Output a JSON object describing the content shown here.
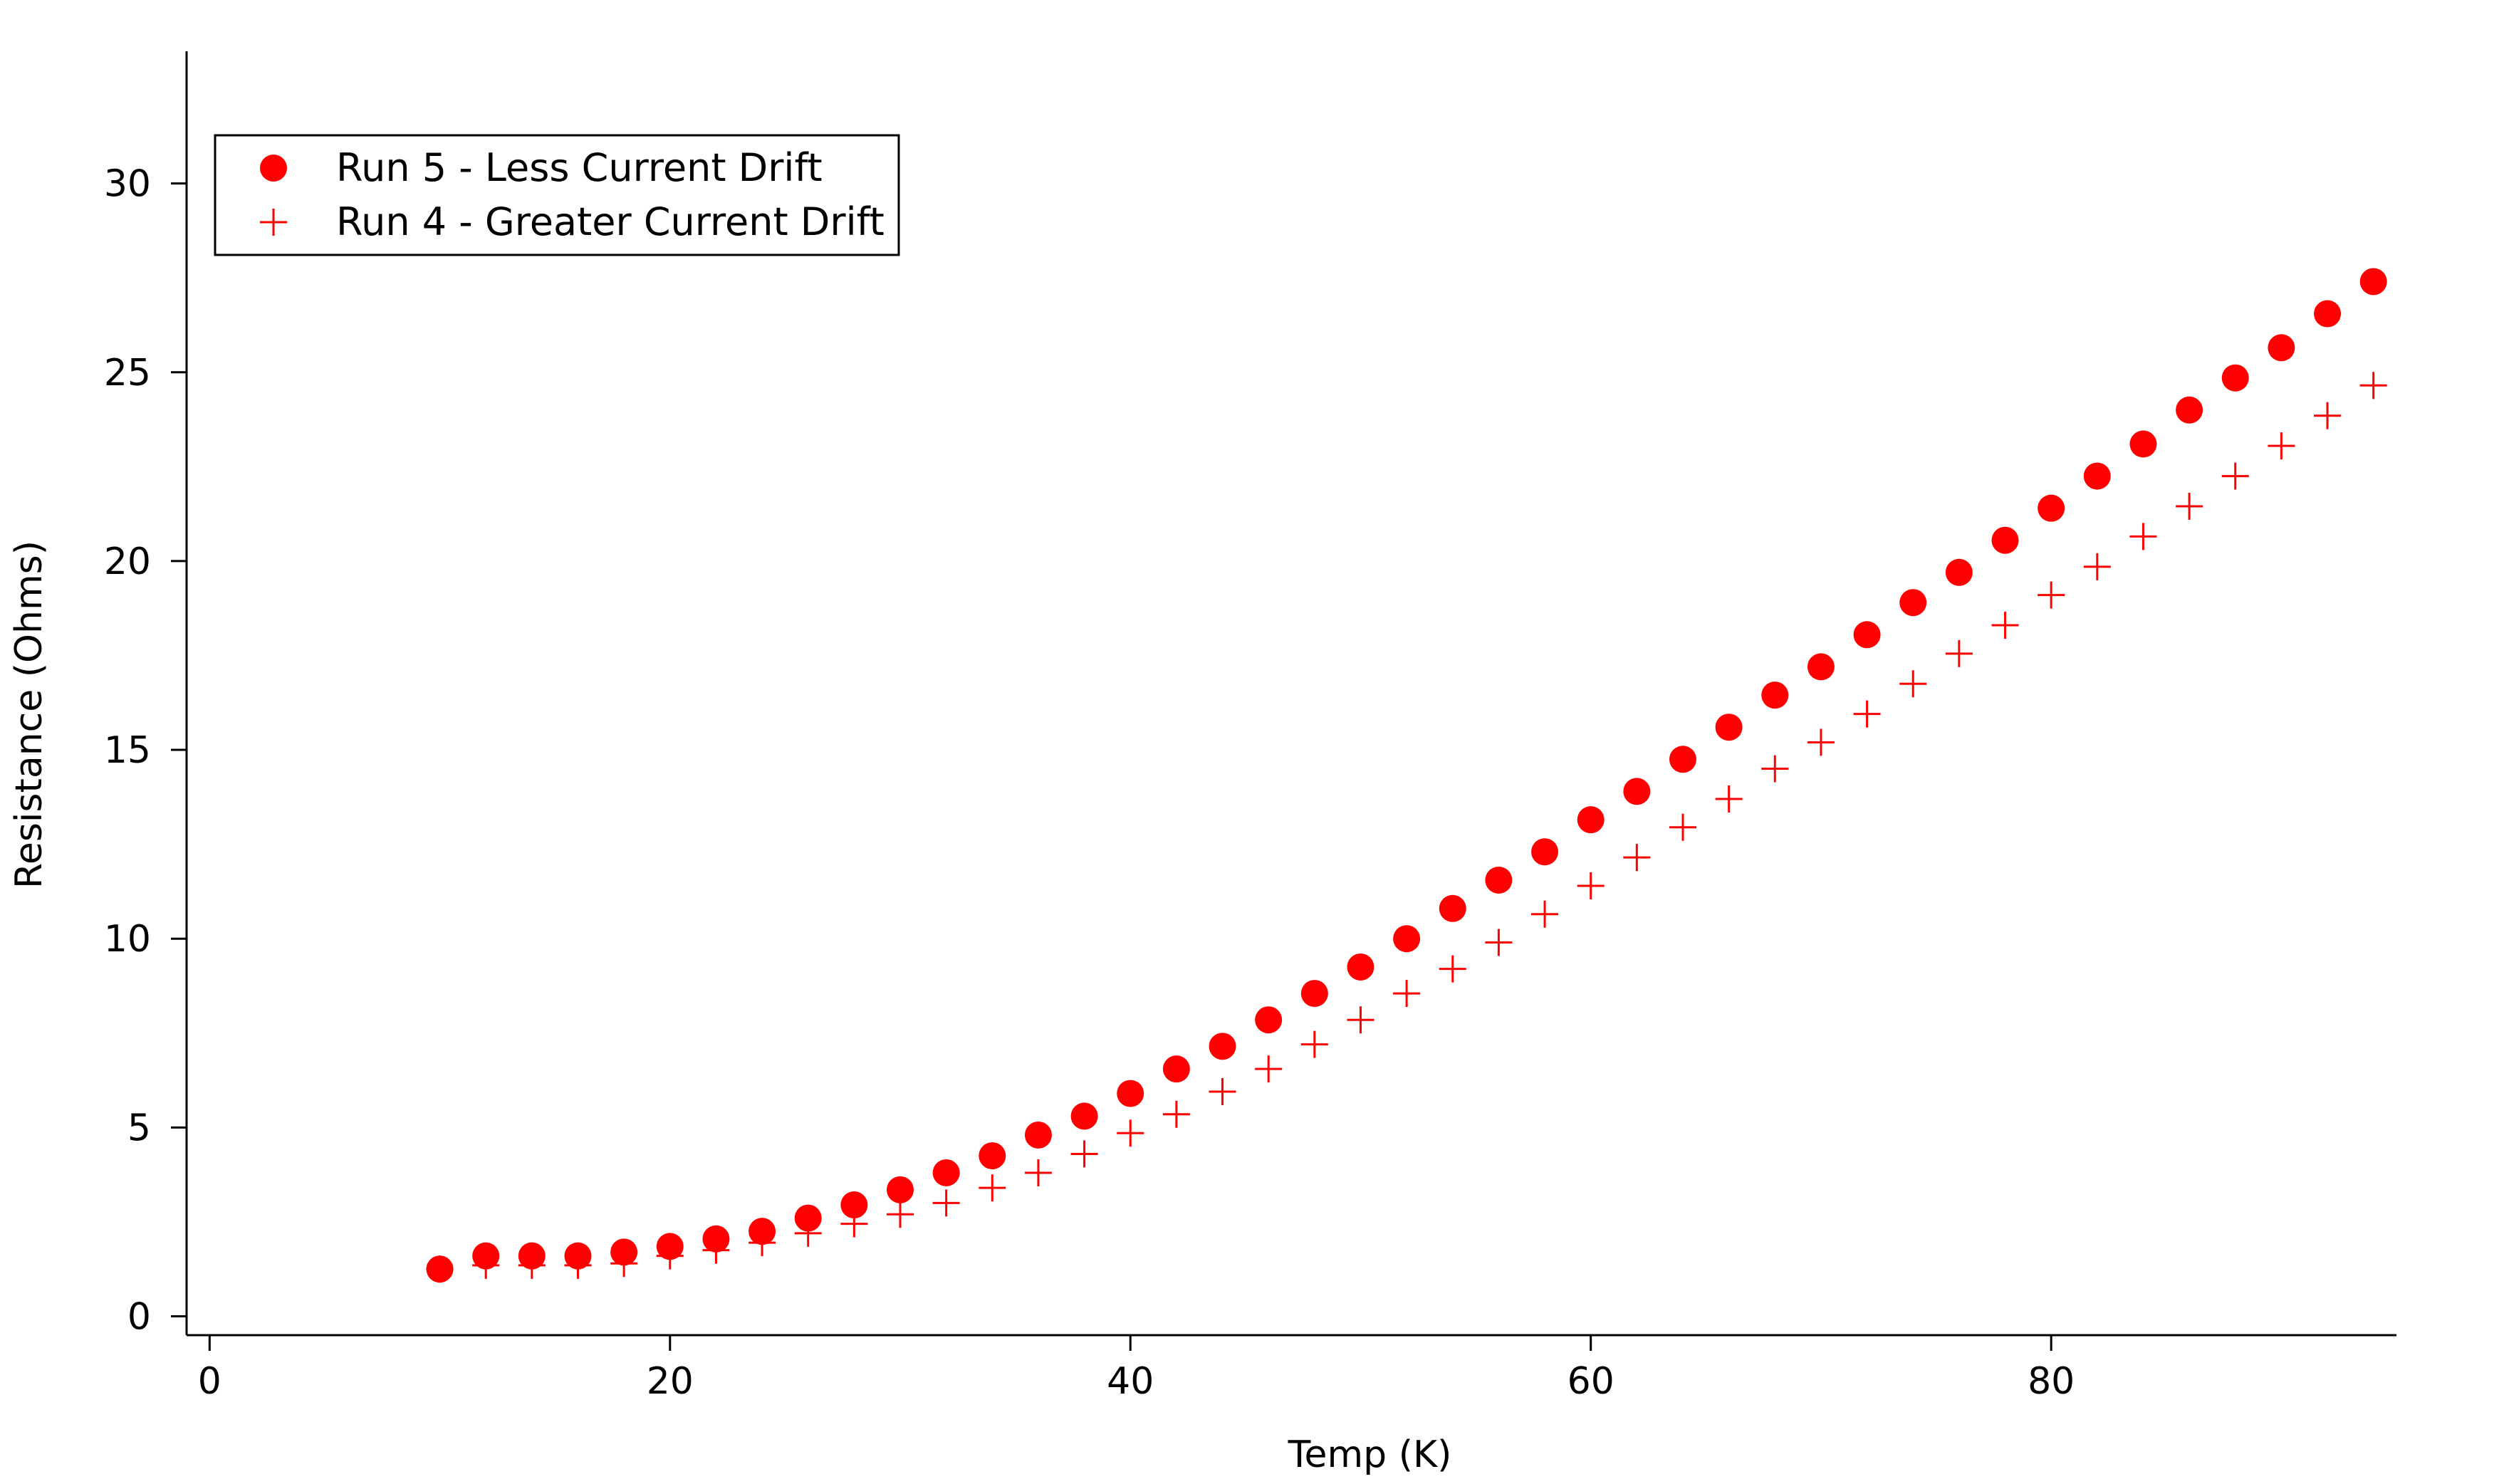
{
  "chart_data": {
    "type": "scatter",
    "xlabel": "Temp (K)",
    "ylabel": "Resistance (Ohms)",
    "xlim": [
      -1,
      95
    ],
    "ylim": [
      -0.5,
      33.5
    ],
    "xticks": [
      0,
      20,
      40,
      60,
      80
    ],
    "yticks": [
      0,
      5,
      10,
      15,
      20,
      25,
      30
    ],
    "grid": false,
    "legend_position": "top-left",
    "x": [
      10,
      12,
      14,
      16,
      18,
      20,
      22,
      24,
      26,
      28,
      30,
      32,
      34,
      36,
      38,
      40,
      42,
      44,
      46,
      48,
      50,
      52,
      54,
      56,
      58,
      60,
      62,
      64,
      66,
      68,
      70,
      72,
      74,
      76,
      78,
      80,
      82,
      84,
      86,
      88,
      90,
      92,
      94
    ],
    "series": [
      {
        "name": "Run 5 - Less Current Drift",
        "marker": "circle",
        "color": "#ff0000",
        "values": [
          1.25,
          1.6,
          1.6,
          1.6,
          1.7,
          1.85,
          2.05,
          2.25,
          2.6,
          2.95,
          3.35,
          3.8,
          4.25,
          4.8,
          5.3,
          5.9,
          6.55,
          7.15,
          7.85,
          8.55,
          9.25,
          10.0,
          10.8,
          11.55,
          12.3,
          13.15,
          13.9,
          14.75,
          15.6,
          16.45,
          17.2,
          18.05,
          18.9,
          19.7,
          20.55,
          21.4,
          22.25,
          23.1,
          24.0,
          24.85,
          25.65,
          26.55,
          27.4
        ]
      },
      {
        "name": "Run 4 - Greater Current Drift",
        "marker": "plus",
        "color": "#ff0000",
        "values": [
          1.25,
          1.35,
          1.35,
          1.35,
          1.4,
          1.6,
          1.75,
          1.95,
          2.2,
          2.45,
          2.7,
          3.0,
          3.4,
          3.8,
          4.3,
          4.85,
          5.35,
          5.95,
          6.55,
          7.2,
          7.85,
          8.55,
          9.2,
          9.9,
          10.65,
          11.4,
          12.15,
          12.95,
          13.7,
          14.5,
          15.2,
          15.95,
          16.75,
          17.55,
          18.3,
          19.1,
          19.85,
          20.65,
          21.45,
          22.25,
          23.05,
          23.85,
          24.65
        ]
      }
    ]
  }
}
